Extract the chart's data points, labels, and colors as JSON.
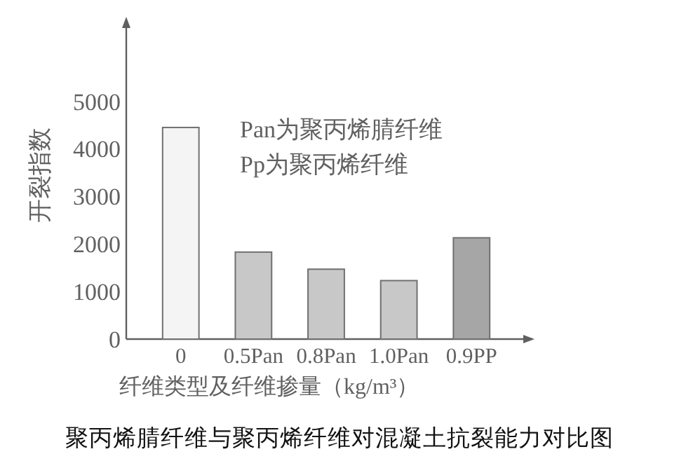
{
  "chart_data": {
    "type": "bar",
    "title": "聚丙烯腈纤维与聚丙烯纤维对混凝土抗裂能力对比图",
    "xlabel": "纤维类型及纤维掺量（kg/m³）",
    "ylabel": "开裂指数",
    "categories": [
      "0",
      "0.5Pan",
      "0.8Pan",
      "1.0Pan",
      "0.9PP"
    ],
    "values": [
      4450,
      1830,
      1470,
      1230,
      2130
    ],
    "colors": [
      "#f4f4f4",
      "#c8c8c8",
      "#c8c8c8",
      "#c8c8c8",
      "#a6a6a6"
    ],
    "ylim": [
      0,
      6600
    ],
    "yticks": [
      0,
      1000,
      2000,
      3000,
      4000,
      5000
    ],
    "annotations": [
      "Pan为聚丙烯腈纤维",
      "Pp为聚丙烯纤维"
    ]
  }
}
